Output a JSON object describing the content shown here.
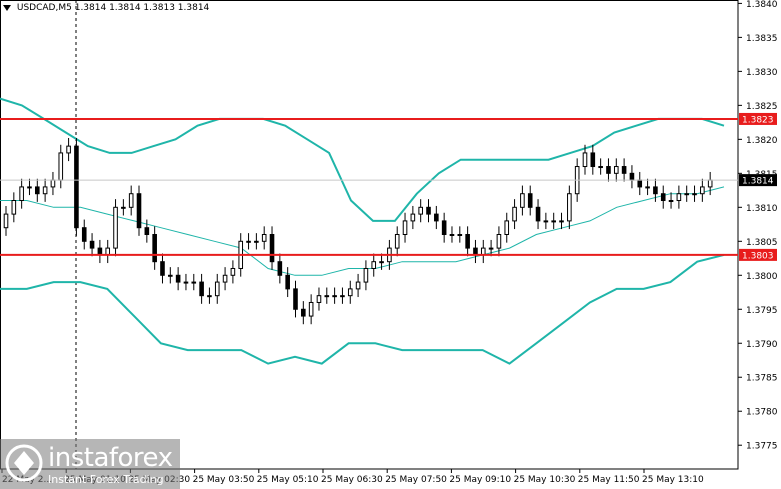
{
  "header": {
    "symbol": "USDCAD,M5",
    "ohlc": "1.3814 1.3814 1.3813 1.3814"
  },
  "colors": {
    "background": "#ffffff",
    "candle": "#000000",
    "bollinger": "#1fb5a9",
    "level_line": "#e81c1c",
    "price_label_bg": "#000000",
    "level_label_bg": "#e81c1c"
  },
  "chart_data": {
    "type": "candlestick",
    "yticks": [
      "1.3840",
      "1.3835",
      "1.3830",
      "1.3825",
      "1.3820",
      "1.3815",
      "1.3810",
      "1.3805",
      "1.3800",
      "1.3795",
      "1.3790",
      "1.3785",
      "1.3780",
      "1.3775"
    ],
    "ylim": [
      1.37715,
      1.38405
    ],
    "xticks": [
      "22 May 2...",
      "25 May 01:10",
      "25 May 02:30",
      "25 May 03:50",
      "25 May 05:10",
      "25 May 06:30",
      "25 May 07:50",
      "25 May 09:10",
      "25 May 10:30",
      "25 May 11:50",
      "25 May 13:10"
    ],
    "levels": [
      {
        "label": "1.3823",
        "value": 1.3823
      },
      {
        "label": "1.3803",
        "value": 1.3803
      }
    ],
    "current_price": {
      "label": "1.3814",
      "value": 1.3814
    },
    "close_series": [
      1.3809,
      1.3811,
      1.3813,
      1.3813,
      1.3812,
      1.3813,
      1.3814,
      1.3818,
      1.3819,
      1.3807,
      1.3805,
      1.3804,
      1.3803,
      1.3804,
      1.381,
      1.381,
      1.3812,
      1.3807,
      1.3806,
      1.3802,
      1.38,
      1.38,
      1.3799,
      1.3799,
      1.3799,
      1.3797,
      1.3797,
      1.3799,
      1.38,
      1.3801,
      1.3805,
      1.3805,
      1.3805,
      1.3806,
      1.3802,
      1.38,
      1.3798,
      1.3795,
      1.3794,
      1.3796,
      1.3797,
      1.3797,
      1.3797,
      1.3797,
      1.3798,
      1.3799,
      1.3801,
      1.3802,
      1.3802,
      1.3804,
      1.3806,
      1.3808,
      1.3809,
      1.381,
      1.3809,
      1.3808,
      1.3806,
      1.3806,
      1.3806,
      1.3804,
      1.3803,
      1.3804,
      1.3804,
      1.3806,
      1.3808,
      1.381,
      1.3812,
      1.381,
      1.3808,
      1.3808,
      1.3808,
      1.3808,
      1.3812,
      1.3816,
      1.3818,
      1.3816,
      1.3816,
      1.3815,
      1.3816,
      1.3815,
      1.3814,
      1.3813,
      1.3813,
      1.3812,
      1.3811,
      1.3811,
      1.3812,
      1.3812,
      1.3812,
      1.3813,
      1.3814
    ],
    "bollinger_upper": [
      1.3826,
      1.3825,
      1.3823,
      1.3821,
      1.3819,
      1.3818,
      1.3818,
      1.3819,
      1.382,
      1.3822,
      1.3823,
      1.3823,
      1.3823,
      1.3822,
      1.382,
      1.3818,
      1.3811,
      1.3808,
      1.3808,
      1.3812,
      1.3815,
      1.3817,
      1.3817,
      1.3817,
      1.3817,
      1.3817,
      1.3818,
      1.3819,
      1.3821,
      1.3822,
      1.3823,
      1.3823,
      1.3823,
      1.3822
    ],
    "bollinger_middle": [
      1.3811,
      1.3811,
      1.381,
      1.381,
      1.3809,
      1.3808,
      1.3807,
      1.3806,
      1.3805,
      1.3804,
      1.3801,
      1.38,
      1.38,
      1.3801,
      1.3801,
      1.3802,
      1.3802,
      1.3802,
      1.3803,
      1.3804,
      1.3806,
      1.3807,
      1.3808,
      1.381,
      1.3811,
      1.3812,
      1.3812,
      1.3813
    ],
    "bollinger_lower": [
      1.3798,
      1.3798,
      1.3799,
      1.3799,
      1.3798,
      1.3794,
      1.379,
      1.3789,
      1.3789,
      1.3789,
      1.3787,
      1.3788,
      1.3787,
      1.379,
      1.379,
      1.3789,
      1.3789,
      1.3789,
      1.3789,
      1.3787,
      1.379,
      1.3793,
      1.3796,
      1.3798,
      1.3798,
      1.3799,
      1.3802,
      1.3803
    ]
  },
  "logo": {
    "brand": "instaforex",
    "tagline": "Instant Forex Trading"
  }
}
